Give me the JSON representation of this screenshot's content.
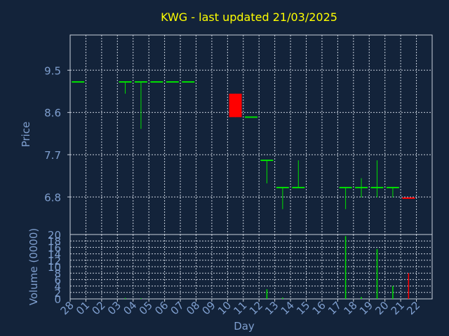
{
  "title": "KWG - last updated 21/03/2025",
  "colors": {
    "background": "#13233a",
    "title": "#ffff00",
    "axis_text": "#7f9fcf",
    "grid": "#c8d0dc",
    "frame": "#c8d0dc",
    "up": "#00e000",
    "down": "#ff0000"
  },
  "chart_data": [
    {
      "type": "candlestick",
      "ylabel": "Price",
      "ylim": [
        6.0,
        10.25
      ],
      "yticks": [
        "6.8",
        "7.7",
        "8.6",
        "9.5"
      ],
      "grid": true,
      "candles": [
        {
          "day": "28",
          "open": 9.25,
          "high": 9.25,
          "low": 9.25,
          "close": 9.25,
          "dir": "up"
        },
        {
          "day": "03",
          "open": 9.25,
          "high": 9.25,
          "low": 9.0,
          "close": 9.25,
          "dir": "up"
        },
        {
          "day": "04",
          "open": 9.25,
          "high": 9.25,
          "low": 8.25,
          "close": 9.25,
          "dir": "up"
        },
        {
          "day": "05",
          "open": 9.25,
          "high": 9.25,
          "low": 9.25,
          "close": 9.25,
          "dir": "up"
        },
        {
          "day": "06",
          "open": 9.25,
          "high": 9.25,
          "low": 9.25,
          "close": 9.25,
          "dir": "up"
        },
        {
          "day": "07",
          "open": 9.25,
          "high": 9.25,
          "low": 9.25,
          "close": 9.25,
          "dir": "up"
        },
        {
          "day": "10",
          "open": 9.0,
          "high": 9.0,
          "low": 8.5,
          "close": 8.5,
          "dir": "down"
        },
        {
          "day": "11",
          "open": 8.5,
          "high": 8.5,
          "low": 8.5,
          "close": 8.5,
          "dir": "up"
        },
        {
          "day": "12",
          "open": 7.58,
          "high": 7.58,
          "low": 7.09,
          "close": 7.58,
          "dir": "up"
        },
        {
          "day": "13",
          "open": 7.0,
          "high": 7.0,
          "low": 6.54,
          "close": 7.0,
          "dir": "up"
        },
        {
          "day": "14",
          "open": 7.0,
          "high": 7.58,
          "low": 7.0,
          "close": 7.0,
          "dir": "up"
        },
        {
          "day": "17",
          "open": 7.0,
          "high": 7.0,
          "low": 6.54,
          "close": 7.0,
          "dir": "up"
        },
        {
          "day": "18",
          "open": 7.0,
          "high": 7.2,
          "low": 6.79,
          "close": 7.0,
          "dir": "up"
        },
        {
          "day": "19",
          "open": 7.0,
          "high": 7.58,
          "low": 6.79,
          "close": 7.0,
          "dir": "up"
        },
        {
          "day": "20",
          "open": 7.0,
          "high": 7.0,
          "low": 6.79,
          "close": 7.0,
          "dir": "up"
        },
        {
          "day": "21",
          "open": 6.79,
          "high": 6.79,
          "low": 6.76,
          "close": 6.76,
          "dir": "down"
        }
      ]
    },
    {
      "type": "bar",
      "xlabel": "Day",
      "ylabel": "Volume (0000)",
      "ylim": [
        0,
        20
      ],
      "yticks": [
        "0",
        "2",
        "4",
        "6",
        "8",
        "10",
        "12",
        "14",
        "16",
        "18",
        "20"
      ],
      "xticks": [
        "28",
        "01",
        "02",
        "03",
        "04",
        "05",
        "06",
        "07",
        "08",
        "09",
        "10",
        "11",
        "12",
        "13",
        "14",
        "15",
        "16",
        "17",
        "18",
        "19",
        "20",
        "21",
        "22"
      ],
      "grid": true,
      "bars": [
        {
          "day": "03",
          "value": 0.3,
          "dir": "up"
        },
        {
          "day": "04",
          "value": 0.2,
          "dir": "up"
        },
        {
          "day": "12",
          "value": 3.0,
          "dir": "up"
        },
        {
          "day": "13",
          "value": 0.4,
          "dir": "up"
        },
        {
          "day": "17",
          "value": 19.5,
          "dir": "up"
        },
        {
          "day": "18",
          "value": 0.6,
          "dir": "up"
        },
        {
          "day": "19",
          "value": 15.5,
          "dir": "up"
        },
        {
          "day": "20",
          "value": 4.0,
          "dir": "up"
        },
        {
          "day": "21",
          "value": 8.0,
          "dir": "down"
        }
      ]
    }
  ]
}
